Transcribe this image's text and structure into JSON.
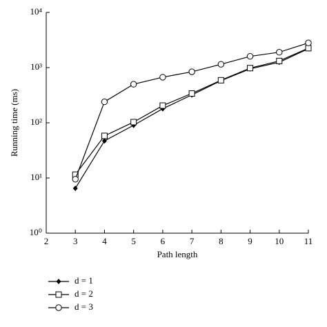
{
  "chart_data": {
    "type": "line",
    "x_label": "Path length",
    "y_label": "Running time (ms)",
    "x": [
      3,
      4,
      5,
      6,
      7,
      8,
      9,
      10,
      11
    ],
    "series": [
      {
        "name": "d = 1",
        "color": "#000000",
        "marker": "diamond",
        "values": [
          6.5,
          47,
          90,
          180,
          320,
          580,
          950,
          1250,
          2200
        ]
      },
      {
        "name": "d = 2",
        "color": "#000000",
        "marker": "square",
        "values": [
          11.5,
          58,
          103,
          205,
          340,
          590,
          980,
          1320,
          2250
        ]
      },
      {
        "name": "d = 3",
        "color": "#000000",
        "marker": "circle",
        "values": [
          9.5,
          240,
          500,
          670,
          840,
          1150,
          1600,
          1900,
          2800
        ]
      }
    ],
    "xlim": [
      2,
      11
    ],
    "xticks": [
      2,
      3,
      4,
      5,
      6,
      7,
      8,
      9,
      10,
      11
    ],
    "ylim": [
      1,
      10000
    ],
    "y_scale": "log",
    "yticks": [
      {
        "value": 1,
        "label": "10⁰"
      },
      {
        "value": 10,
        "label": "10¹"
      },
      {
        "value": 100,
        "label": "10²"
      },
      {
        "value": 1000,
        "label": "10³"
      },
      {
        "value": 10000,
        "label": "10⁴"
      }
    ],
    "legend": "bottom-left"
  }
}
